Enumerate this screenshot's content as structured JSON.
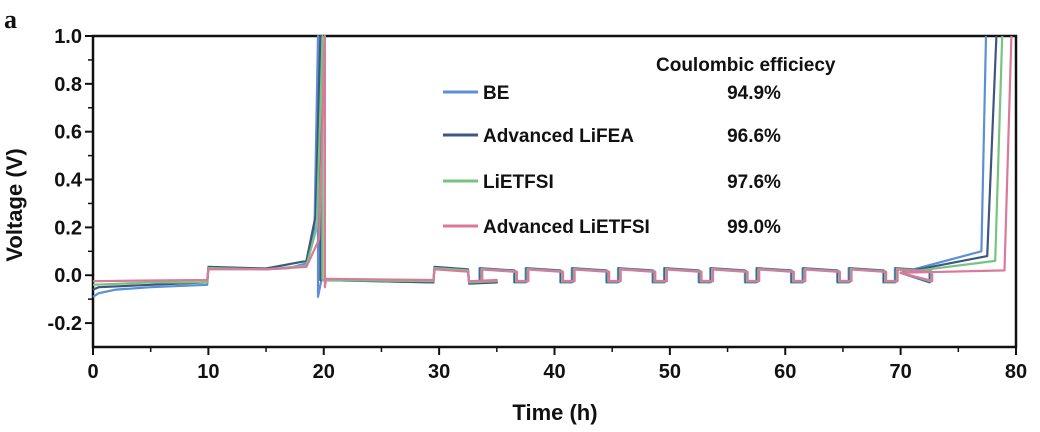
{
  "chart_data": {
    "type": "line",
    "panel_label": "a",
    "xlabel": "Time (h)",
    "ylabel": "Voltage (V)",
    "xlim": [
      0,
      80
    ],
    "ylim": [
      -0.3,
      1.0
    ],
    "x_ticks": [
      "0",
      "10",
      "20",
      "30",
      "40",
      "50",
      "60",
      "70",
      "80"
    ],
    "y_ticks": [
      "-0.2",
      "0.0",
      "0.2",
      "0.4",
      "0.6",
      "0.8",
      "1.0"
    ],
    "legend_title": "Coulombic efficiecy",
    "legend_position": "top-center",
    "series": [
      {
        "name": "BE",
        "efficiency": "94.9%",
        "color": "#5b8fd6",
        "points": [
          [
            0,
            -0.09
          ],
          [
            0.5,
            -0.075
          ],
          [
            2,
            -0.06
          ],
          [
            5,
            -0.05
          ],
          [
            9.9,
            -0.04
          ],
          [
            10,
            0.03
          ],
          [
            12,
            0.028
          ],
          [
            15,
            0.025
          ],
          [
            17,
            0.03
          ],
          [
            18.5,
            0.05
          ],
          [
            19.2,
            0.2
          ],
          [
            19.5,
            1.0
          ],
          [
            19.5,
            -0.09
          ],
          [
            19.8,
            -0.02
          ],
          [
            29.5,
            -0.03
          ],
          [
            29.6,
            0.03
          ],
          [
            32.5,
            0.02
          ],
          [
            32.6,
            -0.03
          ],
          [
            35,
            -0.03
          ],
          [
            77,
            0.1
          ],
          [
            77.4,
            1.0
          ]
        ]
      },
      {
        "name": "Advanced LiFEA",
        "efficiency": "96.6%",
        "color": "#3f5680",
        "points": [
          [
            0,
            -0.06
          ],
          [
            0.5,
            -0.05
          ],
          [
            5,
            -0.04
          ],
          [
            9.9,
            -0.03
          ],
          [
            10,
            0.035
          ],
          [
            15,
            0.028
          ],
          [
            18.5,
            0.06
          ],
          [
            19.3,
            0.25
          ],
          [
            19.7,
            1.0
          ],
          [
            19.7,
            -0.02
          ],
          [
            29.5,
            -0.03
          ],
          [
            29.6,
            0.035
          ],
          [
            32.5,
            0.025
          ],
          [
            32.6,
            -0.035
          ],
          [
            35,
            -0.03
          ],
          [
            77.5,
            0.08
          ],
          [
            78.3,
            1.0
          ]
        ]
      },
      {
        "name": "LiETFSI",
        "efficiency": "97.6%",
        "color": "#77c47e",
        "points": [
          [
            0,
            -0.04
          ],
          [
            5,
            -0.03
          ],
          [
            9.9,
            -0.03
          ],
          [
            10,
            0.03
          ],
          [
            15,
            0.025
          ],
          [
            18.5,
            0.04
          ],
          [
            19.4,
            0.2
          ],
          [
            19.9,
            1.0
          ],
          [
            19.9,
            -0.02
          ],
          [
            29.5,
            -0.025
          ],
          [
            29.6,
            0.03
          ],
          [
            32.5,
            0.02
          ],
          [
            32.6,
            -0.03
          ],
          [
            35,
            -0.025
          ],
          [
            78.2,
            0.06
          ],
          [
            78.8,
            1.0
          ]
        ]
      },
      {
        "name": "Advanced LiETFSI",
        "efficiency": "99.0%",
        "color": "#d9799c",
        "points": [
          [
            0,
            -0.025
          ],
          [
            5,
            -0.022
          ],
          [
            9.9,
            -0.02
          ],
          [
            10,
            0.025
          ],
          [
            15,
            0.025
          ],
          [
            18.5,
            0.035
          ],
          [
            19.6,
            0.15
          ],
          [
            20.1,
            1.0
          ],
          [
            20.1,
            -0.05
          ],
          [
            20.2,
            -0.015
          ],
          [
            29.5,
            -0.02
          ],
          [
            29.6,
            0.025
          ],
          [
            32.5,
            0.015
          ],
          [
            32.6,
            -0.025
          ],
          [
            35,
            -0.02
          ],
          [
            79,
            0.02
          ],
          [
            79.6,
            1.0
          ]
        ]
      }
    ],
    "cycling_region": {
      "x_start": 29.5,
      "x_end": 70,
      "step_period_h": 4.0,
      "step_on_h": 3.0,
      "high_v": 0.03,
      "low_v": -0.03
    }
  }
}
